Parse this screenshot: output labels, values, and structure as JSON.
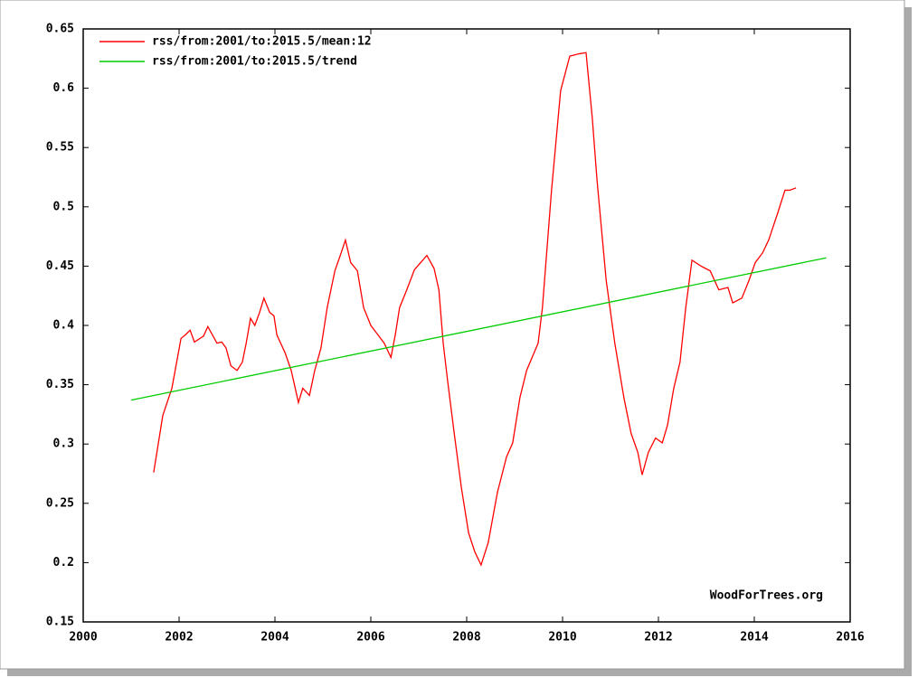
{
  "chart_data": {
    "type": "line",
    "annotation": "WoodForTrees.org",
    "xlim": [
      2000,
      2016
    ],
    "xticks": [
      2000,
      2002,
      2004,
      2006,
      2008,
      2010,
      2012,
      2014,
      2016
    ],
    "ylim": [
      0.15,
      0.65
    ],
    "yticks": [
      0.15,
      0.2,
      0.25,
      0.3,
      0.35,
      0.4,
      0.45,
      0.5,
      0.55,
      0.6,
      0.65
    ],
    "legend": "upper left",
    "series": [
      {
        "name": "rss/from:2001/to:2015.5/mean:12",
        "color": "#ff0000",
        "x": [
          2001.47,
          2001.66,
          2001.85,
          2002.04,
          2002.13,
          2002.23,
          2002.32,
          2002.51,
          2002.6,
          2002.79,
          2002.89,
          2002.98,
          2003.08,
          2003.21,
          2003.32,
          2003.4,
          2003.49,
          2003.58,
          2003.68,
          2003.77,
          2003.89,
          2003.98,
          2004.04,
          2004.21,
          2004.34,
          2004.49,
          2004.58,
          2004.72,
          2004.83,
          2004.96,
          2005.09,
          2005.25,
          2005.38,
          2005.47,
          2005.58,
          2005.72,
          2005.85,
          2006.0,
          2006.15,
          2006.28,
          2006.42,
          2006.51,
          2006.6,
          2006.75,
          2006.91,
          2007.04,
          2007.17,
          2007.32,
          2007.42,
          2007.51,
          2007.6,
          2007.74,
          2007.89,
          2008.04,
          2008.17,
          2008.3,
          2008.45,
          2008.64,
          2008.83,
          2008.96,
          2009.11,
          2009.25,
          2009.49,
          2009.58,
          2009.77,
          2009.96,
          2010.15,
          2010.34,
          2010.49,
          2010.62,
          2010.72,
          2010.91,
          2011.09,
          2011.28,
          2011.43,
          2011.57,
          2011.66,
          2011.79,
          2011.94,
          2012.08,
          2012.19,
          2012.32,
          2012.45,
          2012.57,
          2012.7,
          2012.89,
          2013.08,
          2013.26,
          2013.45,
          2013.55,
          2013.74,
          2013.89,
          2014.02,
          2014.17,
          2014.3,
          2014.49,
          2014.64,
          2014.74,
          2014.87
        ],
        "values": [
          0.276,
          0.324,
          0.347,
          0.389,
          0.392,
          0.396,
          0.386,
          0.391,
          0.399,
          0.385,
          0.386,
          0.381,
          0.366,
          0.362,
          0.369,
          0.385,
          0.406,
          0.4,
          0.411,
          0.423,
          0.411,
          0.408,
          0.392,
          0.377,
          0.362,
          0.335,
          0.347,
          0.341,
          0.362,
          0.381,
          0.415,
          0.446,
          0.461,
          0.472,
          0.453,
          0.446,
          0.415,
          0.4,
          0.392,
          0.385,
          0.373,
          0.392,
          0.415,
          0.43,
          0.447,
          0.453,
          0.459,
          0.448,
          0.43,
          0.385,
          0.354,
          0.309,
          0.263,
          0.225,
          0.209,
          0.198,
          0.217,
          0.259,
          0.289,
          0.301,
          0.339,
          0.362,
          0.385,
          0.415,
          0.514,
          0.598,
          0.627,
          0.629,
          0.63,
          0.575,
          0.522,
          0.438,
          0.385,
          0.339,
          0.309,
          0.293,
          0.274,
          0.293,
          0.305,
          0.301,
          0.316,
          0.347,
          0.369,
          0.415,
          0.455,
          0.45,
          0.446,
          0.43,
          0.432,
          0.419,
          0.423,
          0.438,
          0.453,
          0.461,
          0.472,
          0.495,
          0.514,
          0.514,
          0.516
        ]
      },
      {
        "name": "rss/from:2001/to:2015.5/trend",
        "color": "#00cc00",
        "x": [
          2001,
          2015.5
        ],
        "values": [
          0.337,
          0.457
        ]
      }
    ]
  }
}
